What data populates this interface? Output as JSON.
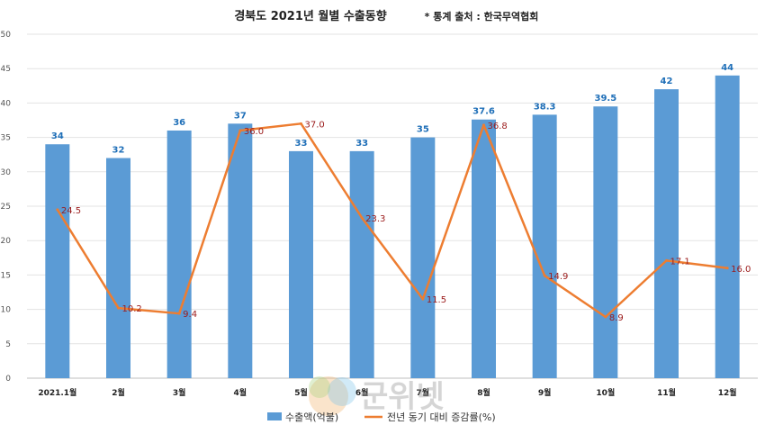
{
  "title": "경북도 2021년 월별 수출동향",
  "source_note": "* 통계 출처 : 한국무역협회",
  "watermark": "군위넷",
  "chart_data": {
    "type": "bar",
    "categories": [
      "2021.1월",
      "2월",
      "3월",
      "4월",
      "5월",
      "6월",
      "7월",
      "8월",
      "9월",
      "10월",
      "11월",
      "12월"
    ],
    "series": [
      {
        "name": "수출액(억불)",
        "type": "bar",
        "color": "#5b9bd5",
        "values": [
          34,
          32,
          36,
          37,
          33,
          33,
          35,
          37.6,
          38.3,
          39.5,
          42,
          44
        ],
        "labels": [
          "34",
          "32",
          "36",
          "37",
          "33",
          "33",
          "35",
          "37.6",
          "38.3",
          "39.5",
          "42",
          "44"
        ]
      },
      {
        "name": "전년 동기 대비 증감률(%)",
        "type": "line",
        "color": "#ed7d31",
        "values": [
          24.5,
          10.2,
          9.4,
          36.0,
          37.0,
          23.3,
          11.5,
          36.8,
          14.9,
          8.9,
          17.1,
          16.0
        ],
        "labels": [
          "24.5",
          "10.2",
          "9.4",
          "36.0",
          "37.0",
          "23.3",
          "11.5",
          "36.8",
          "14.9",
          "8.9",
          "17.1",
          "16.0"
        ]
      }
    ],
    "yticks": [
      "0",
      "5",
      "10",
      "15",
      "20",
      "25",
      "30",
      "35",
      "40",
      "45",
      "50"
    ],
    "ylim": [
      0,
      50
    ],
    "grid": true,
    "legend_position": "bottom"
  }
}
